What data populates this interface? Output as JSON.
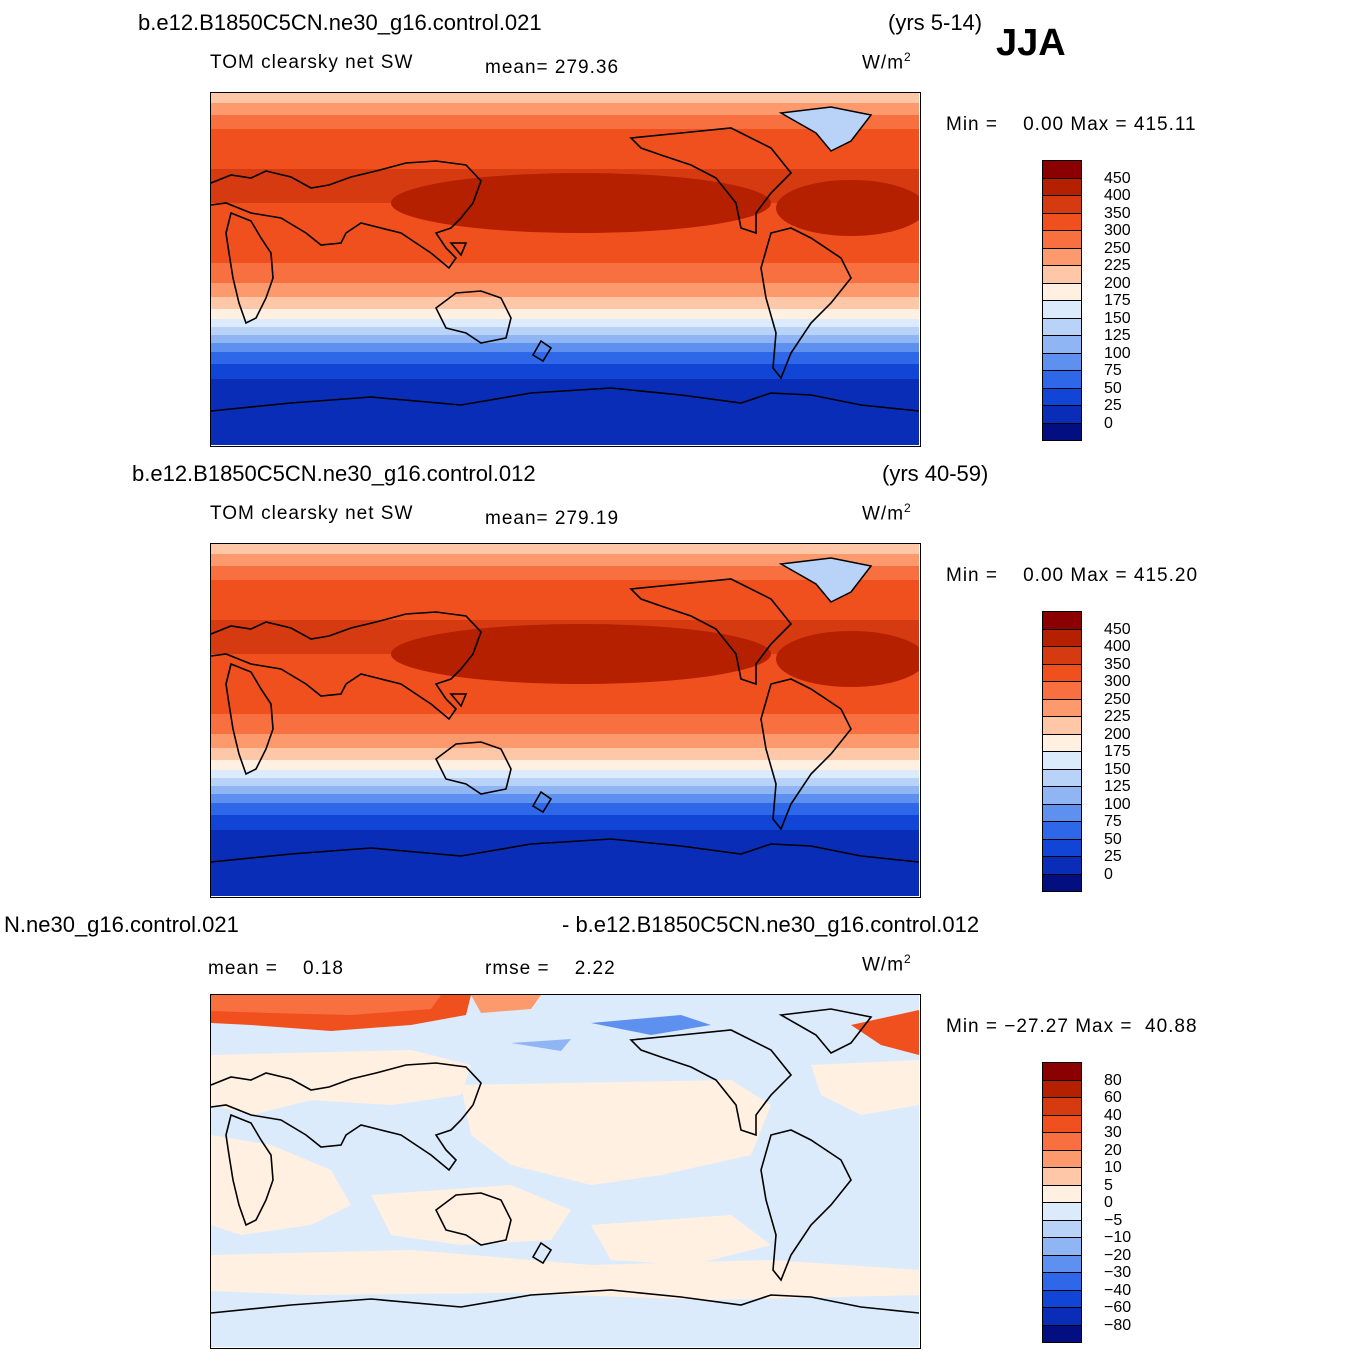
{
  "season": "JJA",
  "panels": [
    {
      "case": "b.e12.B1850C5CN.ne30_g16.control.021",
      "years": "(yrs 5-14)",
      "variable": "TOM clearsky net SW",
      "stat_text": "mean= 279.36",
      "stat2_text": "",
      "units_base": "W/m",
      "units_sup": "2",
      "minmax_text": "Min =    0.00 Max = 415.11"
    },
    {
      "case": "b.e12.B1850C5CN.ne30_g16.control.012",
      "years": "(yrs 40-59)",
      "variable": "TOM clearsky net SW",
      "stat_text": "mean= 279.19",
      "stat2_text": "",
      "units_base": "W/m",
      "units_sup": "2",
      "minmax_text": "Min =    0.00 Max = 415.20"
    },
    {
      "case": "N.ne30_g16.control.021",
      "years": "- b.e12.B1850C5CN.ne30_g16.control.012",
      "variable": "",
      "stat_text": "mean =    0.18",
      "stat2_text": "rmse =    2.22",
      "units_base": "W/m",
      "units_sup": "2",
      "minmax_text": "Min = −27.27 Max =  40.88"
    }
  ],
  "colorbars": {
    "abs": {
      "labels": [
        "450",
        "400",
        "350",
        "300",
        "250",
        "225",
        "200",
        "175",
        "150",
        "125",
        "100",
        "75",
        "50",
        "25",
        "0"
      ],
      "colors": [
        "#8b0000",
        "#b52000",
        "#d63a10",
        "#f0501e",
        "#f97040",
        "#fc9a6e",
        "#fdc7a8",
        "#fff0e2",
        "#dcebfb",
        "#b8d2f8",
        "#8fb5f5",
        "#5e90f0",
        "#2e68e8",
        "#1045d6",
        "#0a2db8",
        "#030e80"
      ]
    },
    "diff": {
      "labels": [
        "80",
        "60",
        "40",
        "30",
        "20",
        "10",
        "5",
        "0",
        "−5",
        "−10",
        "−20",
        "−30",
        "−40",
        "−60",
        "−80"
      ],
      "colors": [
        "#8b0000",
        "#b52000",
        "#d63a10",
        "#f0501e",
        "#f97040",
        "#fc9a6e",
        "#fdc7a8",
        "#fff0e2",
        "#dcebfb",
        "#b8d2f8",
        "#8fb5f5",
        "#5e90f0",
        "#2e68e8",
        "#1045d6",
        "#0a2db8",
        "#030e80"
      ]
    }
  }
}
